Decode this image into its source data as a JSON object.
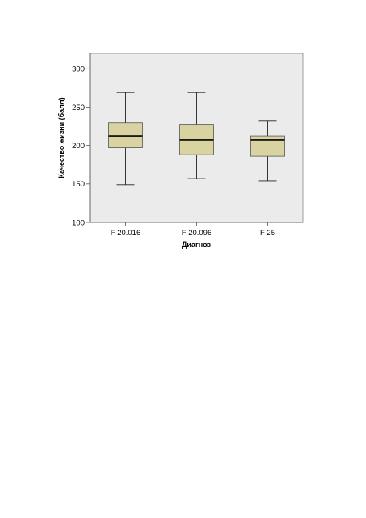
{
  "chart_data": {
    "type": "boxplot",
    "xlabel": "Диагноз",
    "ylabel": "Качество жизни (балл)",
    "ylim": [
      100,
      320
    ],
    "yticks": [
      "100",
      "150",
      "200",
      "250",
      "300"
    ],
    "categories": [
      "F 20.016",
      "F 20.096",
      "F 25"
    ],
    "boxes": [
      {
        "category": "F 20.016",
        "min": 149,
        "q1": 197,
        "median": 212,
        "q3": 230,
        "max": 269
      },
      {
        "category": "F 20.096",
        "min": 157,
        "q1": 188,
        "median": 207,
        "q3": 227,
        "max": 269
      },
      {
        "category": "F 25",
        "min": 154,
        "q1": 186,
        "median": 207,
        "q3": 212,
        "max": 232
      }
    ],
    "grid": false,
    "legend": "none",
    "colors": {
      "plot_background": "#ebebeb",
      "box_fill": "#d8d3a0",
      "box_stroke": "#555555",
      "whisker": "#222222",
      "median": "#000000"
    }
  }
}
